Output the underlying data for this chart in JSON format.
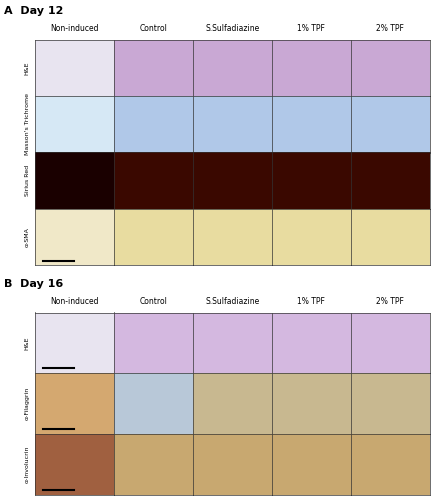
{
  "fig_width": 4.34,
  "fig_height": 5.0,
  "dpi": 100,
  "background": "#ffffff",
  "panel_A_label": "A  Day 12",
  "panel_B_label": "B  Day 16",
  "col_headers": [
    "Non-induced",
    "Control",
    "S.Sulfadiazine",
    "1% TPF",
    "2% TPF"
  ],
  "panel_A_row_labels": [
    "H&E",
    "Masson's Trichrome",
    "Sirius Red",
    "α-SMA"
  ],
  "panel_B_row_labels": [
    "H&E",
    "α-Filaggrin",
    "α-Involucrin"
  ],
  "n_cols": 5,
  "n_rows_A": 4,
  "n_rows_B": 3,
  "panel_A_colors": [
    [
      "#e8e4f0",
      "#c9a8d4",
      "#c9a8d4",
      "#c9a8d4",
      "#c9a8d4"
    ],
    [
      "#d6e8f5",
      "#b0c8e8",
      "#b0c8e8",
      "#b0c8e8",
      "#b0c8e8"
    ],
    [
      "#1a0000",
      "#3a0800",
      "#3a0800",
      "#3a0800",
      "#3a0800"
    ],
    [
      "#f0e8c8",
      "#e8dca0",
      "#e8dca0",
      "#e8dca0",
      "#e8dca0"
    ]
  ],
  "panel_B_colors": [
    [
      "#e8e4f0",
      "#d4b8e0",
      "#d4b8e0",
      "#d4b8e0",
      "#d4b8e0"
    ],
    [
      "#d4a870",
      "#b8c8d8",
      "#c8b890",
      "#c8b890",
      "#c8b890"
    ],
    [
      "#a06040",
      "#c8a870",
      "#c8a870",
      "#c8a870",
      "#c8a870"
    ]
  ],
  "border_color": "#333333",
  "label_color": "#000000",
  "col_header_fontsize": 5.5,
  "row_label_fontsize": 4.5,
  "panel_label_fontsize": 8,
  "scalebar_color": "#000000"
}
